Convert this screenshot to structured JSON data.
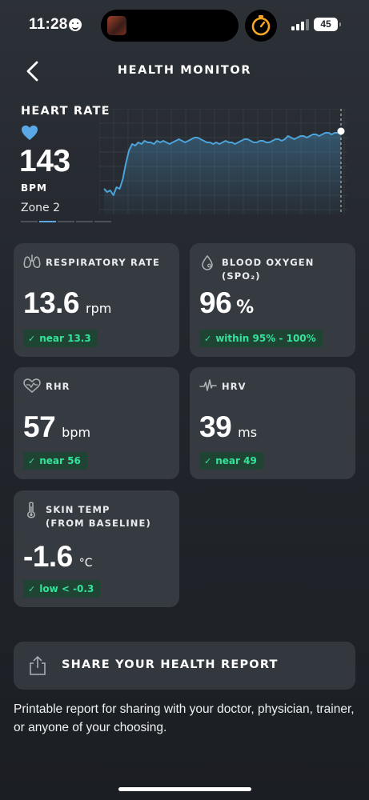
{
  "status_bar": {
    "time": "11:28",
    "battery": "45"
  },
  "header": {
    "title": "HEALTH MONITOR"
  },
  "heart_rate": {
    "title": "HEART RATE",
    "value": "143",
    "unit": "BPM",
    "zone": "Zone 2",
    "zone_index": 2,
    "zone_count": 5
  },
  "chart_data": {
    "type": "line",
    "title": "",
    "xlabel": "",
    "ylabel": "",
    "series": [
      {
        "values": [
          112,
          110,
          111,
          108,
          113,
          112,
          118,
          128,
          136,
          140,
          139,
          141,
          140,
          142,
          141,
          141,
          140,
          142,
          141,
          142,
          141,
          140,
          141,
          142,
          143,
          142,
          141,
          142,
          143,
          144,
          144,
          143,
          142,
          141,
          141,
          140,
          141,
          140,
          141,
          142,
          141,
          141,
          140,
          141,
          142,
          143,
          143,
          142,
          141,
          141,
          142,
          142,
          141,
          141,
          142,
          143,
          143,
          142,
          143,
          145,
          144,
          143,
          144,
          145,
          145,
          144,
          145,
          146,
          146,
          145,
          146,
          147,
          147,
          146,
          147,
          147,
          148
        ]
      }
    ],
    "ylim": [
      100,
      160
    ],
    "grid": true,
    "accent": "#4ba3d9"
  },
  "cards": [
    {
      "label": "RESPIRATORY RATE",
      "value": "13.6",
      "unit": "rpm",
      "badge": "near 13.3",
      "icon": "lungs-icon"
    },
    {
      "label": "BLOOD OXYGEN (SPO₂)",
      "value": "96",
      "unit": "%",
      "badge": "within 95% - 100%",
      "icon": "droplet-icon"
    },
    {
      "label": "RHR",
      "value": "57",
      "unit": "bpm",
      "badge": "near 56",
      "icon": "heart-outline-icon"
    },
    {
      "label": "HRV",
      "value": "39",
      "unit": "ms",
      "badge": "near 49",
      "icon": "pulse-line-icon"
    },
    {
      "label": "SKIN TEMP\n(FROM BASELINE)",
      "label_line1": "SKIN TEMP",
      "label_line2": "(FROM BASELINE)",
      "value": "-1.6",
      "unit": "°C",
      "badge": "low < -0.3",
      "icon": "thermometer-icon"
    }
  ],
  "share": {
    "label": "SHARE YOUR HEALTH REPORT",
    "description": "Printable report for sharing with your doctor, physician, trainer, or anyone of your choosing."
  },
  "colors": {
    "background": "#23272d",
    "card": "#363b42",
    "badge_bg": "#1f4434",
    "badge_text": "#34e39b",
    "heart": "#5aa9e6",
    "chart_line": "#4ba3d9"
  }
}
